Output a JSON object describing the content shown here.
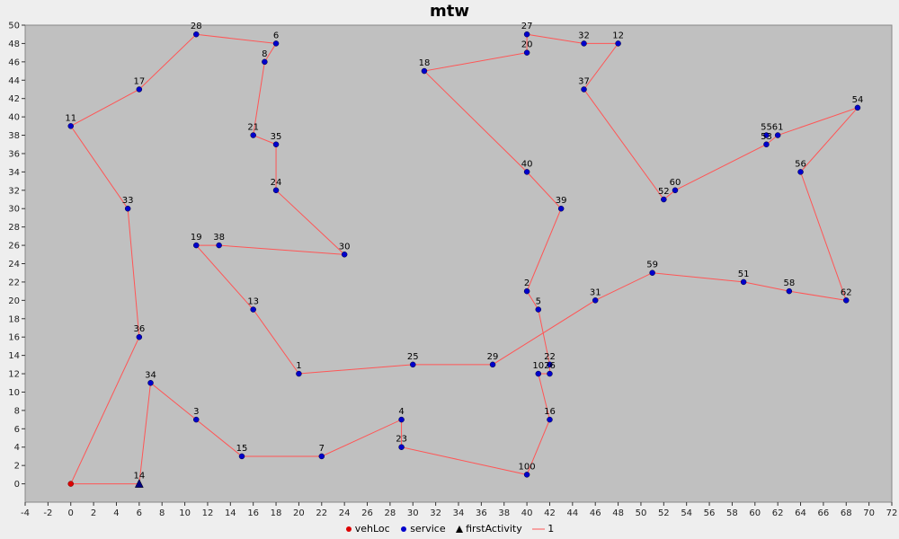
{
  "chart_data": {
    "type": "scatter",
    "title": "mtw",
    "xlim": [
      -4,
      72
    ],
    "ylim": [
      -2,
      50
    ],
    "x_ticks": [
      -4,
      -2,
      0,
      2,
      4,
      6,
      8,
      10,
      12,
      14,
      16,
      18,
      20,
      22,
      24,
      26,
      28,
      30,
      32,
      34,
      36,
      38,
      40,
      42,
      44,
      46,
      48,
      50,
      52,
      54,
      56,
      58,
      60,
      62,
      64,
      66,
      68,
      70,
      72
    ],
    "y_ticks": [
      0,
      2,
      4,
      6,
      8,
      10,
      12,
      14,
      16,
      18,
      20,
      22,
      24,
      26,
      28,
      30,
      32,
      34,
      36,
      38,
      40,
      42,
      44,
      46,
      48,
      50
    ],
    "grid": false,
    "legend_position": "bottom",
    "colors": {
      "plot_background": "#c0c0c0",
      "route": "#ff5555",
      "vehLoc": "#dd0000",
      "service": "#0000cc",
      "firstActivity": "#000080"
    },
    "vehLoc": {
      "x": 0,
      "y": 0
    },
    "firstActivity": {
      "id": "14",
      "x": 6,
      "y": 0
    },
    "points": [
      {
        "id": "14",
        "x": 6,
        "y": 0
      },
      {
        "id": "34",
        "x": 7,
        "y": 11
      },
      {
        "id": "3",
        "x": 11,
        "y": 7
      },
      {
        "id": "15",
        "x": 15,
        "y": 3
      },
      {
        "id": "7",
        "x": 22,
        "y": 3
      },
      {
        "id": "4",
        "x": 29,
        "y": 7
      },
      {
        "id": "23",
        "x": 29,
        "y": 4
      },
      {
        "id": "100",
        "x": 40,
        "y": 1
      },
      {
        "id": "16",
        "x": 42,
        "y": 7
      },
      {
        "id": "10",
        "x": 41,
        "y": 12
      },
      {
        "id": "26",
        "x": 42,
        "y": 12
      },
      {
        "id": "22",
        "x": 42,
        "y": 13
      },
      {
        "id": "5",
        "x": 41,
        "y": 19
      },
      {
        "id": "2",
        "x": 40,
        "y": 21
      },
      {
        "id": "39",
        "x": 43,
        "y": 30
      },
      {
        "id": "40",
        "x": 40,
        "y": 34
      },
      {
        "id": "18",
        "x": 31,
        "y": 45
      },
      {
        "id": "20",
        "x": 40,
        "y": 47
      },
      {
        "id": "27",
        "x": 40,
        "y": 49
      },
      {
        "id": "32",
        "x": 45,
        "y": 48
      },
      {
        "id": "12",
        "x": 48,
        "y": 48
      },
      {
        "id": "37",
        "x": 45,
        "y": 43
      },
      {
        "id": "52",
        "x": 52,
        "y": 31
      },
      {
        "id": "60",
        "x": 53,
        "y": 32
      },
      {
        "id": "53",
        "x": 61,
        "y": 37
      },
      {
        "id": "55",
        "x": 61,
        "y": 38
      },
      {
        "id": "61",
        "x": 62,
        "y": 38
      },
      {
        "id": "54",
        "x": 69,
        "y": 41
      },
      {
        "id": "56",
        "x": 64,
        "y": 34
      },
      {
        "id": "62",
        "x": 68,
        "y": 20
      },
      {
        "id": "58",
        "x": 63,
        "y": 21
      },
      {
        "id": "51",
        "x": 59,
        "y": 22
      },
      {
        "id": "59",
        "x": 51,
        "y": 23
      },
      {
        "id": "31",
        "x": 46,
        "y": 20
      },
      {
        "id": "29",
        "x": 37,
        "y": 13
      },
      {
        "id": "25",
        "x": 30,
        "y": 13
      },
      {
        "id": "1",
        "x": 20,
        "y": 12
      },
      {
        "id": "13",
        "x": 16,
        "y": 19
      },
      {
        "id": "19",
        "x": 11,
        "y": 26
      },
      {
        "id": "38",
        "x": 13,
        "y": 26
      },
      {
        "id": "30",
        "x": 24,
        "y": 25
      },
      {
        "id": "24",
        "x": 18,
        "y": 32
      },
      {
        "id": "35",
        "x": 18,
        "y": 37
      },
      {
        "id": "21",
        "x": 16,
        "y": 38
      },
      {
        "id": "8",
        "x": 17,
        "y": 46
      },
      {
        "id": "6",
        "x": 18,
        "y": 48
      },
      {
        "id": "28",
        "x": 11,
        "y": 49
      },
      {
        "id": "17",
        "x": 6,
        "y": 43
      },
      {
        "id": "11",
        "x": 0,
        "y": 39
      },
      {
        "id": "33",
        "x": 5,
        "y": 30
      },
      {
        "id": "36",
        "x": 6,
        "y": 16
      }
    ],
    "route": {
      "name": "1",
      "path": [
        [
          0,
          0
        ],
        [
          6,
          0
        ],
        [
          7,
          11
        ],
        [
          11,
          7
        ],
        [
          15,
          3
        ],
        [
          22,
          3
        ],
        [
          29,
          7
        ],
        [
          29,
          4
        ],
        [
          40,
          1
        ],
        [
          42,
          7
        ],
        [
          41,
          12
        ],
        [
          42,
          12
        ],
        [
          42,
          13
        ],
        [
          41,
          19
        ],
        [
          40,
          21
        ],
        [
          43,
          30
        ],
        [
          40,
          34
        ],
        [
          31,
          45
        ],
        [
          40,
          47
        ],
        [
          40,
          49
        ],
        [
          45,
          48
        ],
        [
          48,
          48
        ],
        [
          45,
          43
        ],
        [
          52,
          31
        ],
        [
          53,
          32
        ],
        [
          61,
          37
        ],
        [
          62,
          38
        ],
        [
          69,
          41
        ],
        [
          64,
          34
        ],
        [
          68,
          20
        ],
        [
          63,
          21
        ],
        [
          59,
          22
        ],
        [
          51,
          23
        ],
        [
          46,
          20
        ],
        [
          37,
          13
        ],
        [
          30,
          13
        ],
        [
          20,
          12
        ],
        [
          16,
          19
        ],
        [
          11,
          26
        ],
        [
          13,
          26
        ],
        [
          24,
          25
        ],
        [
          18,
          32
        ],
        [
          18,
          37
        ],
        [
          16,
          38
        ],
        [
          17,
          46
        ],
        [
          18,
          48
        ],
        [
          11,
          49
        ],
        [
          6,
          43
        ],
        [
          0,
          39
        ],
        [
          5,
          30
        ],
        [
          6,
          16
        ],
        [
          0,
          0
        ]
      ]
    }
  },
  "legend": {
    "vehloc_label": "vehLoc",
    "service_label": "service",
    "first_activity_label": "firstActivity",
    "route_label": "1"
  }
}
